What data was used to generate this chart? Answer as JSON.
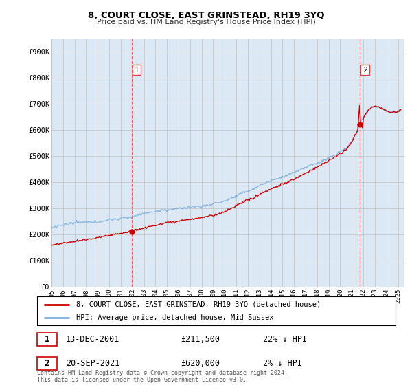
{
  "title": "8, COURT CLOSE, EAST GRINSTEAD, RH19 3YQ",
  "subtitle": "Price paid vs. HM Land Registry's House Price Index (HPI)",
  "ylabel_ticks": [
    "£0",
    "£100K",
    "£200K",
    "£300K",
    "£400K",
    "£500K",
    "£600K",
    "£700K",
    "£800K",
    "£900K"
  ],
  "ytick_values": [
    0,
    100000,
    200000,
    300000,
    400000,
    500000,
    600000,
    700000,
    800000,
    900000
  ],
  "ylim": [
    0,
    950000
  ],
  "xlim_start": 1995.0,
  "xlim_end": 2025.5,
  "sale1_x": 2001.958,
  "sale1_y": 211500,
  "sale1_label": "1",
  "sale2_x": 2021.72,
  "sale2_y": 620000,
  "sale2_label": "2",
  "sale_color": "#cc0000",
  "hpi_color": "#7aace0",
  "panel_color": "#dce9f5",
  "vline_color": "#dd4444",
  "legend_line1": "8, COURT CLOSE, EAST GRINSTEAD, RH19 3YQ (detached house)",
  "legend_line2": "HPI: Average price, detached house, Mid Sussex",
  "table_row1_num": "1",
  "table_row1_date": "13-DEC-2001",
  "table_row1_price": "£211,500",
  "table_row1_hpi": "22% ↓ HPI",
  "table_row2_num": "2",
  "table_row2_date": "20-SEP-2021",
  "table_row2_price": "£620,000",
  "table_row2_hpi": "2% ↓ HPI",
  "footnote": "Contains HM Land Registry data © Crown copyright and database right 2024.\nThis data is licensed under the Open Government Licence v3.0.",
  "background_color": "#ffffff",
  "grid_color": "#c0c0c0"
}
